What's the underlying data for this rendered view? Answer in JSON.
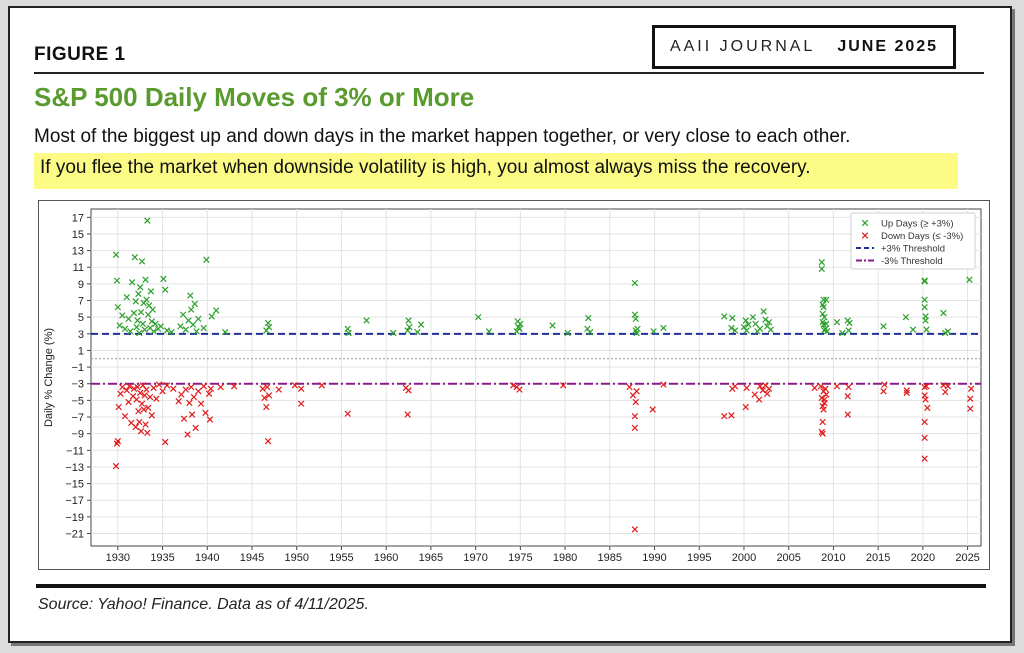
{
  "header": {
    "figure_label": "FIGURE 1",
    "journal_name": "AAII JOURNAL",
    "journal_date": "JUNE 2025",
    "title": "S&P 500 Daily Moves of 3% or More",
    "subtitle": "Most of the biggest up and down days in the market happen together, or very close to each other.",
    "highlight": "If you flee the market when downside volatility is high, you almost always miss the recovery."
  },
  "footer": {
    "source": "Source: Yahoo! Finance. Data as of 4/11/2025."
  },
  "colors": {
    "title_green": "#5a9b2f",
    "highlight_yellow": "#fbfb86",
    "up_marker": "#2ca02c",
    "down_marker": "#e01b1b",
    "up_threshold_line": "#1f2f9c",
    "down_threshold_line": "#8b1a8b"
  },
  "chart_data": {
    "type": "scatter",
    "title": "",
    "xlabel": "",
    "ylabel": "Daily % Change (%)",
    "xlim": [
      1927,
      2026.5
    ],
    "ylim": [
      -22.5,
      18
    ],
    "x_ticks": [
      1930,
      1935,
      1940,
      1945,
      1950,
      1955,
      1960,
      1965,
      1970,
      1975,
      1980,
      1985,
      1990,
      1995,
      2000,
      2005,
      2010,
      2015,
      2020,
      2025
    ],
    "y_ticks": [
      17,
      15,
      13,
      11,
      9,
      7,
      5,
      3,
      1,
      -1,
      -3,
      -5,
      -7,
      -9,
      -11,
      -13,
      -15,
      -17,
      -19,
      -21
    ],
    "grid": true,
    "legend_position": "top-right",
    "legend": [
      {
        "label": "Up Days (≥ +3%)",
        "kind": "marker",
        "color": "#2ca02c"
      },
      {
        "label": "Down Days (≤ -3%)",
        "kind": "marker",
        "color": "#e01b1b"
      },
      {
        "label": "+3% Threshold",
        "kind": "dashed",
        "color": "#1f2f9c"
      },
      {
        "label": "-3% Threshold",
        "kind": "dashdot",
        "color": "#8b1a8b"
      }
    ],
    "thresholds": [
      {
        "name": "+3% Threshold",
        "y": 3
      },
      {
        "name": "-3% Threshold",
        "y": -3
      }
    ],
    "zero_line": 0,
    "series": [
      {
        "name": "Up Days (≥ +3%)",
        "marker": "x",
        "color": "#2ca02c",
        "points": [
          [
            1929.8,
            12.5
          ],
          [
            1929.9,
            9.4
          ],
          [
            1930.0,
            6.2
          ],
          [
            1930.2,
            4.0
          ],
          [
            1930.5,
            5.2
          ],
          [
            1930.8,
            3.6
          ],
          [
            1931.0,
            7.4
          ],
          [
            1931.2,
            4.8
          ],
          [
            1931.4,
            3.3
          ],
          [
            1931.6,
            9.2
          ],
          [
            1931.8,
            5.5
          ],
          [
            1931.9,
            12.2
          ],
          [
            1932.0,
            6.9
          ],
          [
            1932.1,
            3.8
          ],
          [
            1932.2,
            4.6
          ],
          [
            1932.3,
            7.8
          ],
          [
            1932.4,
            3.1
          ],
          [
            1932.5,
            8.6
          ],
          [
            1932.6,
            5.6
          ],
          [
            1932.7,
            11.7
          ],
          [
            1932.8,
            4.2
          ],
          [
            1932.9,
            6.7
          ],
          [
            1933.0,
            3.5
          ],
          [
            1933.1,
            9.5
          ],
          [
            1933.2,
            7.1
          ],
          [
            1933.3,
            16.6
          ],
          [
            1933.4,
            5.3
          ],
          [
            1933.5,
            6.4
          ],
          [
            1933.6,
            3.7
          ],
          [
            1933.7,
            8.1
          ],
          [
            1933.8,
            4.5
          ],
          [
            1933.9,
            5.9
          ],
          [
            1934.0,
            3.3
          ],
          [
            1934.2,
            4.2
          ],
          [
            1934.5,
            3.6
          ],
          [
            1934.8,
            3.9
          ],
          [
            1935.1,
            9.6
          ],
          [
            1935.3,
            8.3
          ],
          [
            1935.5,
            3.4
          ],
          [
            1936.0,
            3.2
          ],
          [
            1937.0,
            3.9
          ],
          [
            1937.3,
            5.3
          ],
          [
            1937.6,
            3.5
          ],
          [
            1937.9,
            4.6
          ],
          [
            1938.1,
            7.6
          ],
          [
            1938.2,
            5.9
          ],
          [
            1938.4,
            4.1
          ],
          [
            1938.6,
            6.6
          ],
          [
            1938.8,
            3.3
          ],
          [
            1939.0,
            4.8
          ],
          [
            1939.6,
            3.7
          ],
          [
            1939.9,
            11.9
          ],
          [
            1940.5,
            5.1
          ],
          [
            1941.0,
            5.8
          ],
          [
            1942.0,
            3.2
          ],
          [
            1946.6,
            3.4
          ],
          [
            1946.8,
            4.3
          ],
          [
            1946.9,
            3.8
          ],
          [
            1955.7,
            3.6
          ],
          [
            1955.8,
            3.1
          ],
          [
            1957.8,
            4.6
          ],
          [
            1960.8,
            3.1
          ],
          [
            1962.4,
            3.4
          ],
          [
            1962.5,
            4.6
          ],
          [
            1962.6,
            3.8
          ],
          [
            1963.5,
            3.2
          ],
          [
            1963.9,
            4.1
          ],
          [
            1970.3,
            5.0
          ],
          [
            1971.5,
            3.3
          ],
          [
            1974.6,
            3.3
          ],
          [
            1974.7,
            4.5
          ],
          [
            1974.8,
            3.8
          ],
          [
            1974.9,
            3.6
          ],
          [
            1975.0,
            4.2
          ],
          [
            1978.6,
            4.0
          ],
          [
            1980.3,
            3.1
          ],
          [
            1982.5,
            3.6
          ],
          [
            1982.6,
            4.9
          ],
          [
            1982.8,
            3.2
          ],
          [
            1987.8,
            9.1
          ],
          [
            1987.8,
            5.3
          ],
          [
            1987.9,
            4.8
          ],
          [
            1987.9,
            3.4
          ],
          [
            1988.0,
            3.1
          ],
          [
            1988.1,
            3.6
          ],
          [
            1989.9,
            3.3
          ],
          [
            1991.0,
            3.7
          ],
          [
            1997.8,
            5.1
          ],
          [
            1998.6,
            3.7
          ],
          [
            1998.7,
            4.9
          ],
          [
            1999.0,
            3.4
          ],
          [
            2000.0,
            3.8
          ],
          [
            2000.2,
            4.6
          ],
          [
            2000.3,
            3.4
          ],
          [
            2000.5,
            4.1
          ],
          [
            2001.0,
            5.0
          ],
          [
            2001.3,
            4.2
          ],
          [
            2001.5,
            3.3
          ],
          [
            2001.8,
            3.6
          ],
          [
            2002.2,
            5.7
          ],
          [
            2002.4,
            4.7
          ],
          [
            2002.6,
            3.9
          ],
          [
            2002.8,
            4.4
          ],
          [
            2003.0,
            3.5
          ],
          [
            2008.7,
            11.6
          ],
          [
            2008.7,
            10.8
          ],
          [
            2008.8,
            6.5
          ],
          [
            2008.8,
            5.4
          ],
          [
            2008.8,
            4.4
          ],
          [
            2008.9,
            7.1
          ],
          [
            2008.9,
            6.2
          ],
          [
            2008.9,
            4.1
          ],
          [
            2009.0,
            3.4
          ],
          [
            2009.0,
            5.0
          ],
          [
            2009.1,
            3.6
          ],
          [
            2009.2,
            7.1
          ],
          [
            2009.2,
            4.2
          ],
          [
            2009.3,
            3.3
          ],
          [
            2010.4,
            4.4
          ],
          [
            2011.0,
            3.1
          ],
          [
            2011.6,
            4.6
          ],
          [
            2011.7,
            3.4
          ],
          [
            2011.8,
            4.3
          ],
          [
            2015.6,
            3.9
          ],
          [
            2018.1,
            5.0
          ],
          [
            2018.9,
            3.5
          ],
          [
            2020.2,
            9.4
          ],
          [
            2020.2,
            9.3
          ],
          [
            2020.2,
            6.2
          ],
          [
            2020.2,
            7.1
          ],
          [
            2020.3,
            5.1
          ],
          [
            2020.3,
            4.6
          ],
          [
            2020.4,
            3.5
          ],
          [
            2022.3,
            5.5
          ],
          [
            2022.5,
            3.1
          ],
          [
            2022.8,
            3.3
          ],
          [
            2025.2,
            9.5
          ]
        ]
      },
      {
        "name": "Down Days (≤ -3%)",
        "marker": "x",
        "color": "#e01b1b",
        "points": [
          [
            1929.8,
            -12.9
          ],
          [
            1929.9,
            -10.2
          ],
          [
            1930.0,
            -9.9
          ],
          [
            1930.1,
            -5.8
          ],
          [
            1930.3,
            -4.2
          ],
          [
            1930.5,
            -3.4
          ],
          [
            1930.8,
            -6.9
          ],
          [
            1931.0,
            -3.8
          ],
          [
            1931.2,
            -5.2
          ],
          [
            1931.3,
            -3.3
          ],
          [
            1931.5,
            -7.7
          ],
          [
            1931.7,
            -4.5
          ],
          [
            1931.8,
            -3.6
          ],
          [
            1932.0,
            -8.2
          ],
          [
            1932.1,
            -4.9
          ],
          [
            1932.2,
            -3.4
          ],
          [
            1932.3,
            -6.3
          ],
          [
            1932.4,
            -7.6
          ],
          [
            1932.5,
            -4.1
          ],
          [
            1932.6,
            -8.7
          ],
          [
            1932.7,
            -5.4
          ],
          [
            1932.8,
            -3.2
          ],
          [
            1932.9,
            -6.1
          ],
          [
            1933.0,
            -4.4
          ],
          [
            1933.1,
            -7.9
          ],
          [
            1933.2,
            -3.7
          ],
          [
            1933.3,
            -8.9
          ],
          [
            1933.4,
            -5.9
          ],
          [
            1933.6,
            -4.6
          ],
          [
            1933.8,
            -6.8
          ],
          [
            1934.0,
            -3.5
          ],
          [
            1934.3,
            -4.8
          ],
          [
            1934.6,
            -3.1
          ],
          [
            1935.0,
            -3.9
          ],
          [
            1935.3,
            -10.0
          ],
          [
            1935.5,
            -3.2
          ],
          [
            1936.2,
            -3.6
          ],
          [
            1936.8,
            -5.1
          ],
          [
            1937.1,
            -4.3
          ],
          [
            1937.4,
            -7.2
          ],
          [
            1937.6,
            -3.7
          ],
          [
            1937.8,
            -9.1
          ],
          [
            1938.0,
            -5.3
          ],
          [
            1938.2,
            -3.4
          ],
          [
            1938.3,
            -6.7
          ],
          [
            1938.5,
            -4.6
          ],
          [
            1938.7,
            -8.3
          ],
          [
            1939.0,
            -3.9
          ],
          [
            1939.3,
            -5.4
          ],
          [
            1939.6,
            -3.3
          ],
          [
            1939.8,
            -6.5
          ],
          [
            1940.2,
            -4.2
          ],
          [
            1940.3,
            -7.3
          ],
          [
            1940.4,
            -3.6
          ],
          [
            1941.5,
            -3.4
          ],
          [
            1943.0,
            -3.3
          ],
          [
            1946.2,
            -3.6
          ],
          [
            1946.4,
            -4.7
          ],
          [
            1946.6,
            -5.8
          ],
          [
            1946.7,
            -3.4
          ],
          [
            1946.8,
            -9.9
          ],
          [
            1946.9,
            -4.4
          ],
          [
            1948.0,
            -3.7
          ],
          [
            1949.8,
            -3.2
          ],
          [
            1950.5,
            -5.4
          ],
          [
            1950.5,
            -3.6
          ],
          [
            1952.8,
            -3.2
          ],
          [
            1955.7,
            -6.6
          ],
          [
            1962.2,
            -3.5
          ],
          [
            1962.4,
            -6.7
          ],
          [
            1962.5,
            -3.8
          ],
          [
            1974.2,
            -3.2
          ],
          [
            1974.6,
            -3.4
          ],
          [
            1974.9,
            -3.7
          ],
          [
            1979.8,
            -3.2
          ],
          [
            1987.2,
            -3.4
          ],
          [
            1987.6,
            -4.4
          ],
          [
            1987.8,
            -20.5
          ],
          [
            1987.8,
            -8.3
          ],
          [
            1987.8,
            -6.9
          ],
          [
            1987.9,
            -5.2
          ],
          [
            1988.0,
            -3.9
          ],
          [
            1989.8,
            -6.1
          ],
          [
            1991.0,
            -3.1
          ],
          [
            1997.8,
            -6.9
          ],
          [
            1998.6,
            -6.8
          ],
          [
            1998.7,
            -3.6
          ],
          [
            1999.0,
            -3.3
          ],
          [
            2000.2,
            -5.8
          ],
          [
            2000.3,
            -3.5
          ],
          [
            2001.2,
            -4.3
          ],
          [
            2001.7,
            -4.9
          ],
          [
            2001.8,
            -3.3
          ],
          [
            2002.1,
            -3.8
          ],
          [
            2002.4,
            -3.2
          ],
          [
            2002.6,
            -4.2
          ],
          [
            2002.8,
            -3.6
          ],
          [
            2007.9,
            -3.5
          ],
          [
            2008.6,
            -3.3
          ],
          [
            2008.7,
            -4.7
          ],
          [
            2008.7,
            -8.8
          ],
          [
            2008.8,
            -9.0
          ],
          [
            2008.8,
            -7.6
          ],
          [
            2008.8,
            -5.7
          ],
          [
            2008.9,
            -6.1
          ],
          [
            2008.9,
            -3.9
          ],
          [
            2009.0,
            -4.9
          ],
          [
            2009.0,
            -5.3
          ],
          [
            2009.1,
            -3.6
          ],
          [
            2009.2,
            -4.3
          ],
          [
            2010.4,
            -3.3
          ],
          [
            2011.6,
            -6.7
          ],
          [
            2011.6,
            -4.5
          ],
          [
            2011.7,
            -3.4
          ],
          [
            2015.6,
            -3.9
          ],
          [
            2015.7,
            -3.1
          ],
          [
            2018.2,
            -4.1
          ],
          [
            2018.2,
            -3.8
          ],
          [
            2020.2,
            -3.4
          ],
          [
            2020.2,
            -4.4
          ],
          [
            2020.2,
            -7.6
          ],
          [
            2020.2,
            -9.5
          ],
          [
            2020.2,
            -12.0
          ],
          [
            2020.3,
            -4.9
          ],
          [
            2020.4,
            -3.3
          ],
          [
            2020.5,
            -5.9
          ],
          [
            2022.3,
            -3.2
          ],
          [
            2022.5,
            -4.0
          ],
          [
            2022.8,
            -3.3
          ],
          [
            2025.3,
            -4.8
          ],
          [
            2025.3,
            -6.0
          ],
          [
            2025.4,
            -3.6
          ]
        ]
      }
    ]
  }
}
